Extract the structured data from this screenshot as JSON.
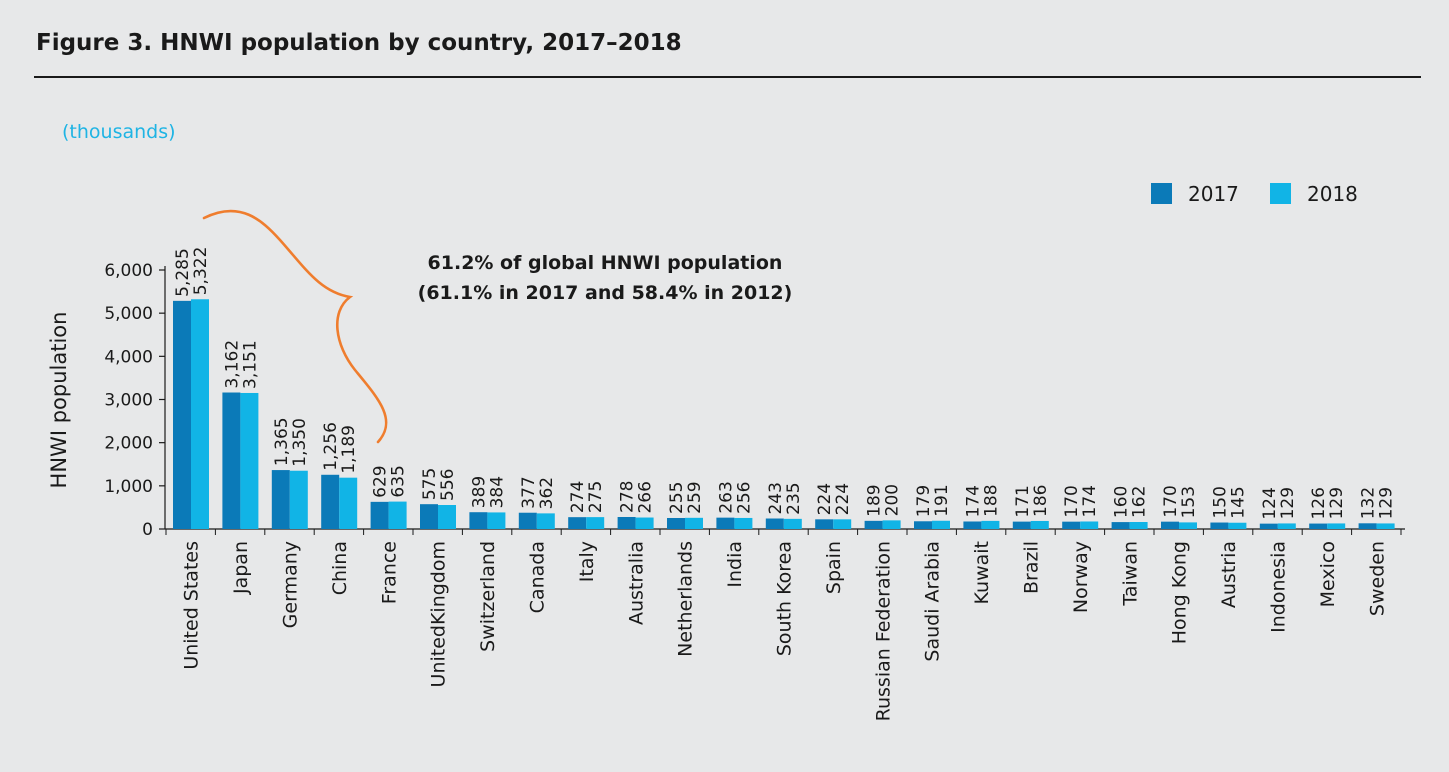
{
  "header": {
    "title": "Figure 3. HNWI population by country, 2017–2018",
    "units": "(thousands)"
  },
  "annotation": {
    "line1": "61.2% of global HNWI population",
    "line2": "(61.1% in 2017 and 58.4% in 2012)"
  },
  "colors": {
    "s2017": "#0b7ab8",
    "s2018": "#11b4e6",
    "brace": "#ef7d2e"
  },
  "chart_data": {
    "type": "bar",
    "title": "Figure 3. HNWI population by country, 2017–2018",
    "ylabel": "HNWI population",
    "xlabel": "",
    "ylim": [
      0,
      6000
    ],
    "yticks": [
      "0",
      "1,000",
      "2,000",
      "3,000",
      "4,000",
      "5,000",
      "6,000"
    ],
    "legend_position": "top-right",
    "categories": [
      "United States",
      "Japan",
      "Germany",
      "China",
      "France",
      "UnitedKingdom",
      "Switzerland",
      "Canada",
      "Italy",
      "Australia",
      "Netherlands",
      "India",
      "South Korea",
      "Spain",
      "Russian Federation",
      "Saudi Arabia",
      "Kuwait",
      "Brazil",
      "Norway",
      "Taiwan",
      "Hong Kong",
      "Austria",
      "Indonesia",
      "Mexico",
      "Sweden"
    ],
    "series": [
      {
        "name": "2017",
        "values": [
          5285,
          3162,
          1365,
          1256,
          629,
          575,
          389,
          377,
          274,
          278,
          255,
          263,
          243,
          224,
          189,
          179,
          174,
          171,
          170,
          160,
          170,
          150,
          124,
          126,
          132
        ]
      },
      {
        "name": "2018",
        "values": [
          5322,
          3151,
          1350,
          1189,
          635,
          556,
          384,
          362,
          275,
          266,
          259,
          256,
          235,
          224,
          200,
          191,
          188,
          186,
          174,
          162,
          153,
          145,
          129,
          129,
          129
        ]
      }
    ]
  }
}
